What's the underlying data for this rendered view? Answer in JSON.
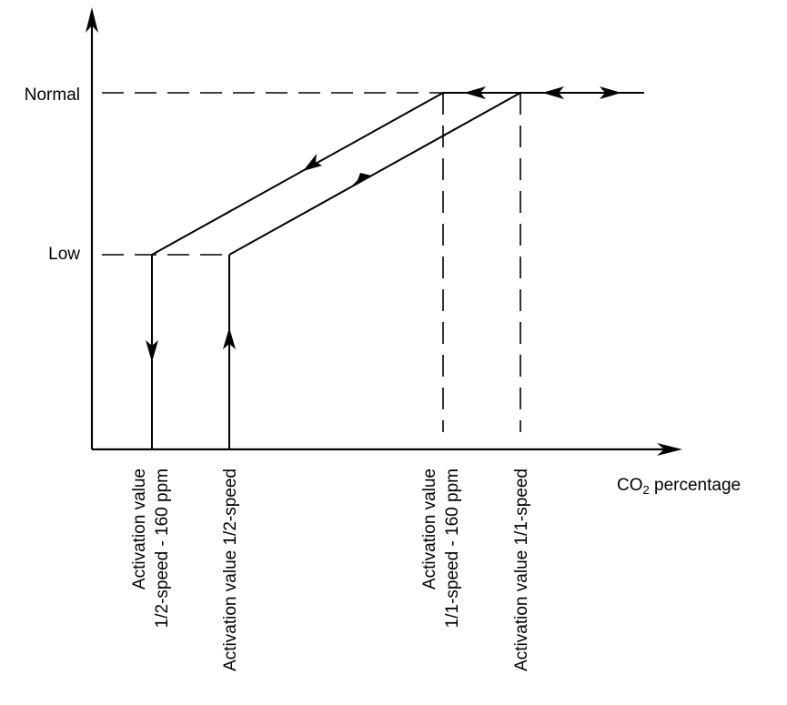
{
  "y_levels": {
    "normal": "Normal",
    "low": "Low"
  },
  "x_axis": {
    "label_main": "CO",
    "label_sub": "2",
    "label_rest": " percentage"
  },
  "thresholds": [
    {
      "line1": "Activation value",
      "line2": "1/2-speed - 160 ppm"
    },
    {
      "line1": "Activation value 1/2-speed",
      "line2": ""
    },
    {
      "line1": "Activation value",
      "line2": "1/1-speed - 160 ppm"
    },
    {
      "line1": "Activation value 1/1-speed",
      "line2": ""
    }
  ]
}
